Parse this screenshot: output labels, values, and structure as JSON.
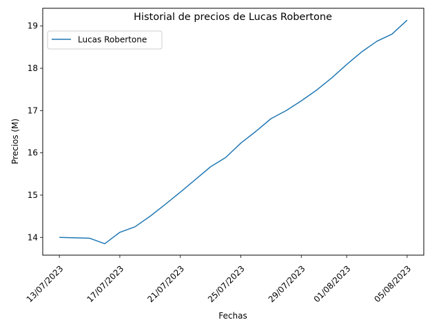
{
  "chart_data": {
    "type": "line",
    "title": "Historial de precios de Lucas Robertone",
    "xlabel": "Fechas",
    "ylabel": "Precios (M)",
    "x_ticks": [
      "13/07/2023",
      "17/07/2023",
      "21/07/2023",
      "25/07/2023",
      "29/07/2023",
      "01/08/2023",
      "05/08/2023"
    ],
    "y_ticks": [
      "14",
      "15",
      "16",
      "17",
      "18",
      "19"
    ],
    "ylim": [
      13.58,
      19.42
    ],
    "xlim": [
      "2023-07-11T21:36",
      "2023-08-06T02:24"
    ],
    "grid": false,
    "legend_position": "top-left",
    "series": [
      {
        "name": "Lucas Robertone",
        "color": "#1f77b4",
        "x": [
          "2023-07-13",
          "2023-07-15",
          "2023-07-16",
          "2023-07-17",
          "2023-07-18",
          "2023-07-19",
          "2023-07-20",
          "2023-07-21",
          "2023-07-22",
          "2023-07-23",
          "2023-07-24",
          "2023-07-25",
          "2023-07-26",
          "2023-07-27",
          "2023-07-28",
          "2023-07-29",
          "2023-07-30",
          "2023-07-31",
          "2023-08-01",
          "2023-08-02",
          "2023-08-03",
          "2023-08-04",
          "2023-08-05"
        ],
        "values": [
          14.0,
          13.98,
          13.85,
          14.12,
          14.25,
          14.5,
          14.78,
          15.07,
          15.37,
          15.67,
          15.89,
          16.23,
          16.51,
          16.81,
          17.0,
          17.23,
          17.48,
          17.77,
          18.09,
          18.39,
          18.64,
          18.81,
          19.14
        ]
      }
    ]
  }
}
